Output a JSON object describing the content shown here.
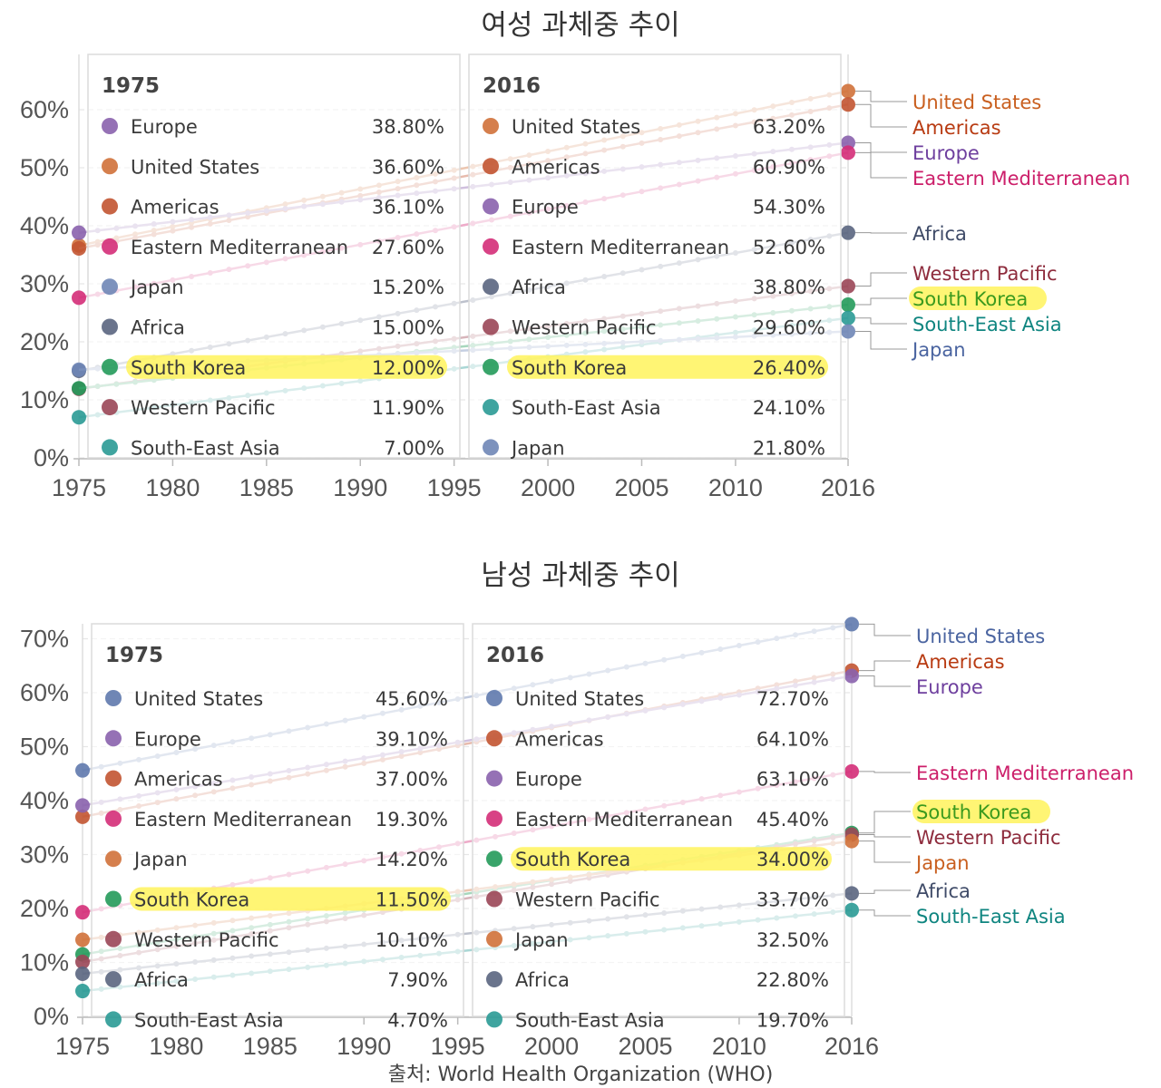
{
  "source_text": "출처:  World Health Organization (WHO)",
  "highlight_color": "#fff35c",
  "chart_data": [
    {
      "type": "line",
      "title": "여성 과체중 추이",
      "x_start": 1975,
      "x_end": 2016,
      "x_ticks": [
        1975,
        1980,
        1985,
        1990,
        1995,
        2000,
        2005,
        2010,
        2016
      ],
      "y_ticks": [
        0,
        10,
        20,
        30,
        40,
        50,
        60
      ],
      "y_tick_suffix": "%",
      "ylim": [
        0,
        63.5
      ],
      "highlight_series": "South Korea",
      "series": [
        {
          "name": "United States",
          "color": "#d0713a",
          "label_color": "#c95f1f",
          "start": 36.6,
          "end": 63.2
        },
        {
          "name": "Americas",
          "color": "#c25431",
          "label_color": "#b83b12",
          "start": 36.1,
          "end": 60.9
        },
        {
          "name": "Europe",
          "color": "#8a62ad",
          "label_color": "#6e3f9e",
          "start": 38.8,
          "end": 54.3
        },
        {
          "name": "Eastern Mediterranean",
          "color": "#d42e78",
          "label_color": "#cc1f6a",
          "start": 27.6,
          "end": 52.6
        },
        {
          "name": "Africa",
          "color": "#5a6580",
          "label_color": "#3f4b68",
          "start": 15.0,
          "end": 38.8
        },
        {
          "name": "Western Pacific",
          "color": "#9a4656",
          "label_color": "#8e2c3d",
          "start": 11.9,
          "end": 29.6
        },
        {
          "name": "South Korea",
          "color": "#249a5a",
          "label_color": "#3b9a1e",
          "start": 12.0,
          "end": 26.4
        },
        {
          "name": "South-East Asia",
          "color": "#2a9a95",
          "label_color": "#0f8580",
          "start": 7.0,
          "end": 24.1
        },
        {
          "name": "Japan",
          "color": "#6f86b6",
          "label_color": "#4a64a0",
          "start": 15.2,
          "end": 21.8
        }
      ],
      "panels": [
        {
          "year": "1975",
          "rows": [
            {
              "name": "Europe",
              "value": "38.80%"
            },
            {
              "name": "United States",
              "value": "36.60%"
            },
            {
              "name": "Americas",
              "value": "36.10%"
            },
            {
              "name": "Eastern Mediterranean",
              "value": "27.60%"
            },
            {
              "name": "Japan",
              "value": "15.20%"
            },
            {
              "name": "Africa",
              "value": "15.00%"
            },
            {
              "name": "South Korea",
              "value": "12.00%"
            },
            {
              "name": "Western Pacific",
              "value": "11.90%"
            },
            {
              "name": "South-East Asia",
              "value": "7.00%"
            }
          ]
        },
        {
          "year": "2016",
          "rows": [
            {
              "name": "United States",
              "value": "63.20%"
            },
            {
              "name": "Americas",
              "value": "60.90%"
            },
            {
              "name": "Europe",
              "value": "54.30%"
            },
            {
              "name": "Eastern Mediterranean",
              "value": "52.60%"
            },
            {
              "name": "Africa",
              "value": "38.80%"
            },
            {
              "name": "Western Pacific",
              "value": "29.60%"
            },
            {
              "name": "South Korea",
              "value": "26.40%"
            },
            {
              "name": "South-East Asia",
              "value": "24.10%"
            },
            {
              "name": "Japan",
              "value": "21.80%"
            }
          ]
        }
      ],
      "end_labels": [
        "United States",
        "Americas",
        "Europe",
        "Eastern Mediterranean",
        "Africa",
        "Western Pacific",
        "South Korea",
        "South-East Asia",
        "Japan"
      ]
    },
    {
      "type": "line",
      "title": "남성 과체중 추이",
      "x_start": 1975,
      "x_end": 2016,
      "x_ticks": [
        1975,
        1980,
        1985,
        1990,
        1995,
        2000,
        2005,
        2010,
        2016
      ],
      "y_ticks": [
        0,
        10,
        20,
        30,
        40,
        50,
        60,
        70
      ],
      "y_tick_suffix": "%",
      "ylim": [
        0,
        73
      ],
      "highlight_series": "South Korea",
      "series": [
        {
          "name": "United States",
          "color": "#5f79ad",
          "label_color": "#4a64a0",
          "start": 45.6,
          "end": 72.7
        },
        {
          "name": "Americas",
          "color": "#c25431",
          "label_color": "#b83b12",
          "start": 37.0,
          "end": 64.1
        },
        {
          "name": "Europe",
          "color": "#8a62ad",
          "label_color": "#6e3f9e",
          "start": 39.1,
          "end": 63.1
        },
        {
          "name": "Eastern Mediterranean",
          "color": "#d42e78",
          "label_color": "#cc1f6a",
          "start": 19.3,
          "end": 45.4
        },
        {
          "name": "South Korea",
          "color": "#249a5a",
          "label_color": "#3b9a1e",
          "start": 11.5,
          "end": 34.0
        },
        {
          "name": "Western Pacific",
          "color": "#9a4656",
          "label_color": "#8e2c3d",
          "start": 10.1,
          "end": 33.7
        },
        {
          "name": "Japan",
          "color": "#d0713a",
          "label_color": "#c95f1f",
          "start": 14.2,
          "end": 32.5
        },
        {
          "name": "Africa",
          "color": "#5a6580",
          "label_color": "#3f4b68",
          "start": 7.9,
          "end": 22.8
        },
        {
          "name": "South-East Asia",
          "color": "#2a9a95",
          "label_color": "#0f8580",
          "start": 4.7,
          "end": 19.7
        }
      ],
      "panels": [
        {
          "year": "1975",
          "rows": [
            {
              "name": "United States",
              "value": "45.60%"
            },
            {
              "name": "Europe",
              "value": "39.10%"
            },
            {
              "name": "Americas",
              "value": "37.00%"
            },
            {
              "name": "Eastern Mediterranean",
              "value": "19.30%"
            },
            {
              "name": "Japan",
              "value": "14.20%"
            },
            {
              "name": "South Korea",
              "value": "11.50%"
            },
            {
              "name": "Western Pacific",
              "value": "10.10%"
            },
            {
              "name": "Africa",
              "value": "7.90%"
            },
            {
              "name": "South-East Asia",
              "value": "4.70%"
            }
          ]
        },
        {
          "year": "2016",
          "rows": [
            {
              "name": "United States",
              "value": "72.70%"
            },
            {
              "name": "Americas",
              "value": "64.10%"
            },
            {
              "name": "Europe",
              "value": "63.10%"
            },
            {
              "name": "Eastern Mediterranean",
              "value": "45.40%"
            },
            {
              "name": "South Korea",
              "value": "34.00%"
            },
            {
              "name": "Western Pacific",
              "value": "33.70%"
            },
            {
              "name": "Japan",
              "value": "32.50%"
            },
            {
              "name": "Africa",
              "value": "22.80%"
            },
            {
              "name": "South-East Asia",
              "value": "19.70%"
            }
          ]
        }
      ],
      "end_labels": [
        "United States",
        "Americas",
        "Europe",
        "Eastern Mediterranean",
        "South Korea",
        "Western Pacific",
        "Japan",
        "Africa",
        "South-East Asia"
      ]
    }
  ]
}
